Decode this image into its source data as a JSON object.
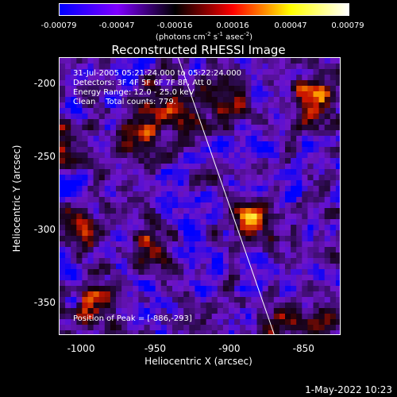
{
  "chart_data": {
    "type": "heatmap",
    "title": "Reconstructed RHESSI Image",
    "xlabel": "Heliocentric X (arcsec)",
    "ylabel": "Heliocentric Y (arcsec)",
    "xlim": [
      -1015,
      -825
    ],
    "ylim": [
      -372,
      -182
    ],
    "x_ticks": [
      "-1000",
      "-950",
      "-900",
      "-850"
    ],
    "x_tick_values": [
      -1000,
      -950,
      -900,
      -850
    ],
    "y_ticks": [
      "-200",
      "-250",
      "-300",
      "-350"
    ],
    "y_tick_values": [
      -200,
      -250,
      -300,
      -350
    ],
    "colorbar": {
      "ticks": [
        "-0.00079",
        "-0.00047",
        "-0.00016",
        "0.00016",
        "0.00047",
        "0.00079"
      ],
      "unit_prefix": "(photons cm",
      "unit_exp1": "-2",
      "unit_mid1": " s",
      "unit_exp2": "-1",
      "unit_mid2": " asec",
      "unit_exp3": "-2",
      "unit_suffix": ")",
      "colors": [
        "#0000ff",
        "#7f00ff",
        "#000000",
        "#ff0000",
        "#ffff00",
        "#ffffff"
      ]
    },
    "annotations": {
      "time": "31-Jul-2005 05:21:24.000 to 05:22:24.000",
      "detectors": "Detectors: 3F 4F 5F 6F 7F 8F, Att 0",
      "energy": "Energy Range: 12.0 - 25.0 keV",
      "clean": "Clean    Total counts: 779.",
      "peak": "Position of Peak = [-886,-293]"
    },
    "limb_line": {
      "x": [
        -935,
        -870
      ],
      "y": [
        -182,
        -372
      ]
    },
    "bright_spots": [
      {
        "x": -843,
        "y": -210,
        "level": 1.0
      },
      {
        "x": -885,
        "y": -292,
        "level": 1.0
      },
      {
        "x": -960,
        "y": -240,
        "level": 0.8
      },
      {
        "x": -955,
        "y": -210,
        "level": 0.75
      },
      {
        "x": -1000,
        "y": -300,
        "level": 0.7
      },
      {
        "x": -930,
        "y": -225,
        "level": 0.7
      },
      {
        "x": -905,
        "y": -212,
        "level": 0.65
      },
      {
        "x": -990,
        "y": -350,
        "level": 0.6
      },
      {
        "x": -950,
        "y": -310,
        "level": 0.6
      },
      {
        "x": -1010,
        "y": -240,
        "level": 0.6
      },
      {
        "x": -870,
        "y": -360,
        "level": 0.55
      },
      {
        "x": -840,
        "y": -365,
        "level": 0.5
      }
    ]
  },
  "footer": {
    "date": "1-May-2022 10:23"
  }
}
